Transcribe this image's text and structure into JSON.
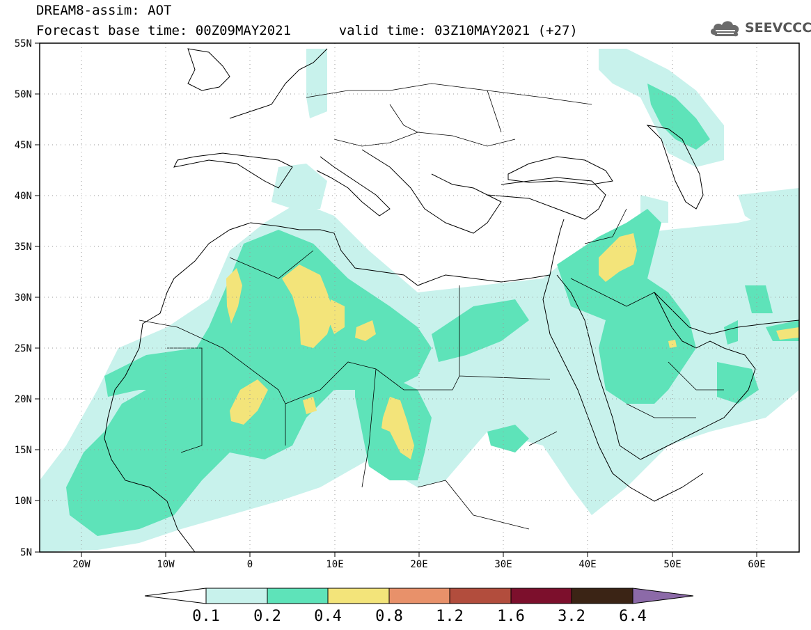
{
  "title": {
    "line1": "DREAM8-assim: AOT",
    "base_time_label": "Forecast base time: 00Z09MAY2021",
    "valid_time_label": "valid time: 03Z10MAY2021 (+27)"
  },
  "logo": {
    "text": "SEEVCCC",
    "icon": "cloud-icon"
  },
  "map": {
    "lon_range": [
      -25,
      65
    ],
    "lat_range": [
      5,
      55
    ],
    "lat_ticks": [
      "55N",
      "50N",
      "45N",
      "40N",
      "35N",
      "30N",
      "25N",
      "20N",
      "15N",
      "10N",
      "5N"
    ],
    "lon_ticks": [
      "20W",
      "10W",
      "0",
      "10E",
      "20E",
      "30E",
      "40E",
      "50E",
      "60E"
    ],
    "grid": "dotted"
  },
  "colorbar": {
    "labels": [
      "0.1",
      "0.2",
      "0.4",
      "0.8",
      "1.2",
      "1.6",
      "3.2",
      "6.4"
    ],
    "colors": [
      "#c8f2ec",
      "#5ee3b9",
      "#f3e47a",
      "#e8916a",
      "#b24d3d",
      "#7c0f2c",
      "#3b2415",
      "#8c6aa8"
    ],
    "under_color": "#ffffff"
  }
}
